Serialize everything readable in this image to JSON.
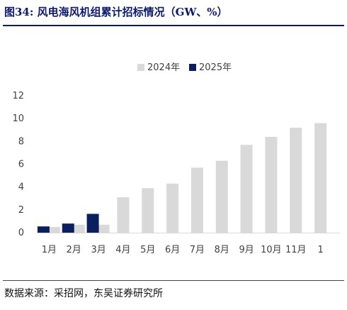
{
  "header": {
    "title": "图34:  风电海风机组累计招标情况（GW、%）"
  },
  "footer": {
    "source": "数据来源：采招网，东吴证券研究所"
  },
  "chart_data": {
    "type": "bar",
    "categories": [
      "1月",
      "2月",
      "3月",
      "4月",
      "5月",
      "6月",
      "7月",
      "8月",
      "9月",
      "10月",
      "11月",
      "1"
    ],
    "series": [
      {
        "name": "2024年",
        "color": "#d9d9d9",
        "values": [
          0.5,
          0.7,
          0.7,
          3.1,
          3.9,
          4.3,
          5.7,
          6.3,
          7.7,
          8.4,
          9.2,
          9.6
        ]
      },
      {
        "name": "2025年",
        "color": "#0b1f5e",
        "values": [
          0.55,
          0.8,
          1.65,
          null,
          null,
          null,
          null,
          null,
          null,
          null,
          null,
          null
        ]
      }
    ],
    "yticks": [
      "0",
      "2",
      "4",
      "6",
      "8",
      "10",
      "12"
    ],
    "ylim": [
      0,
      12
    ],
    "legend_position": "top-center",
    "grid": false
  }
}
